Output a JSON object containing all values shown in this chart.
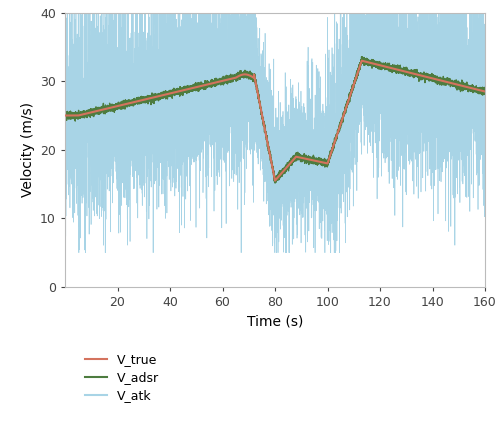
{
  "title": "",
  "xlabel": "Time (s)",
  "ylabel": "Velocity (m/s)",
  "xlim": [
    0,
    160
  ],
  "ylim": [
    0,
    40
  ],
  "xticks": [
    20,
    40,
    60,
    80,
    100,
    120,
    140,
    160
  ],
  "yticks": [
    0,
    10,
    20,
    30,
    40
  ],
  "color_true": "#d4735e",
  "color_adsr": "#4d7c3f",
  "color_atk": "#a8d4e6",
  "legend_labels": [
    "V_true",
    "V_adsr",
    "V_atk"
  ],
  "seed": 123,
  "t_start": 0,
  "t_end": 160,
  "n_points": 8000,
  "figsize": [
    5.0,
    4.22
  ],
  "dpi": 100
}
